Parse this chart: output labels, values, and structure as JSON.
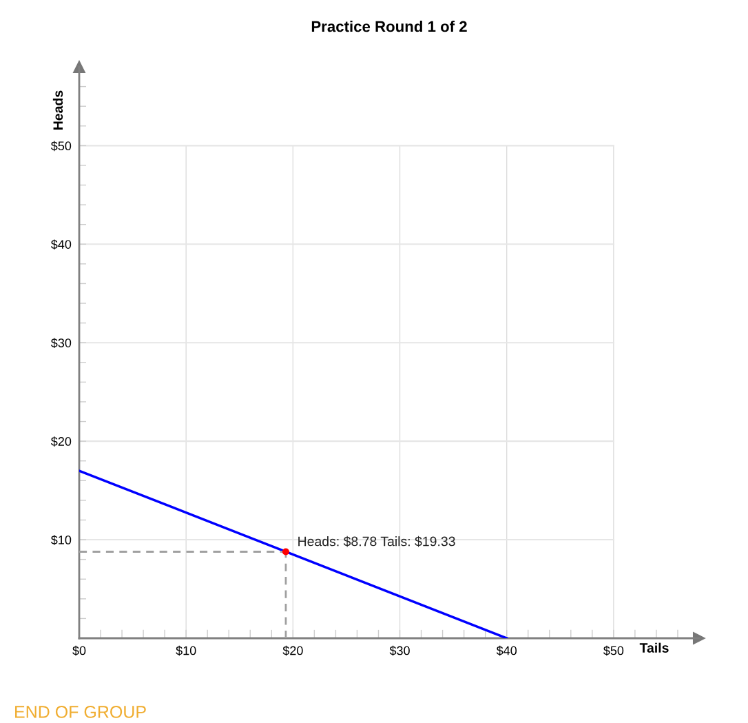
{
  "chart_data": {
    "type": "line",
    "title": "Practice Round 1 of 2",
    "xlabel": "Tails",
    "ylabel": "Heads",
    "series": [
      {
        "color": "#0000ff",
        "x": [
          0,
          40
        ],
        "values": [
          17,
          0
        ]
      },
      {
        "type": "line",
        "color": "#a0a0a0",
        "line_style": "dashed",
        "x": [
          0,
          19.33
        ],
        "values": [
          8.78,
          8.78
        ]
      },
      {
        "type": "line",
        "color": "#a0a0a0",
        "line_style": "dashed",
        "x": [
          19.33,
          19.33
        ],
        "values": [
          0,
          8.78
        ]
      },
      {
        "type": "scatter",
        "color": "#ff0000",
        "marker": "circle",
        "x": [
          19.33
        ],
        "values": [
          8.78
        ]
      }
    ],
    "annotations": [
      {
        "text": "Heads: $8.78 Tails: $19.33",
        "x": 19.33,
        "y": 8.78
      },
      "END OF GROUP"
    ],
    "xlim": [
      0,
      58
    ],
    "ylim": [
      0,
      58
    ],
    "xticks": [
      {
        "value": 0,
        "label": "$0"
      },
      {
        "value": 10,
        "label": "$10"
      },
      {
        "value": 20,
        "label": "$20"
      },
      {
        "value": 30,
        "label": "$30"
      },
      {
        "value": 40,
        "label": "$40"
      },
      {
        "value": 50,
        "label": "$50"
      }
    ],
    "yticks": [
      {
        "value": 0,
        "label": null
      },
      {
        "value": 10,
        "label": "$10"
      },
      {
        "value": 20,
        "label": "$20"
      },
      {
        "value": 30,
        "label": "$30"
      },
      {
        "value": 40,
        "label": "$40"
      },
      {
        "value": 50,
        "label": "$50"
      }
    ],
    "grid": true
  }
}
